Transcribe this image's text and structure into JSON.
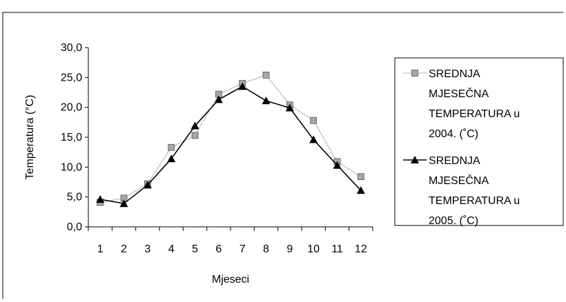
{
  "chart_data": {
    "type": "line",
    "title": "",
    "xlabel": "Mjeseci",
    "ylabel": "Temperatura (°C)",
    "categories": [
      "1",
      "2",
      "3",
      "4",
      "5",
      "6",
      "7",
      "8",
      "9",
      "10",
      "11",
      "12"
    ],
    "ylim": [
      0,
      30
    ],
    "yticks": [
      "0,0",
      "5,0",
      "10,0",
      "15,0",
      "20,0",
      "25,0",
      "30,0"
    ],
    "grid": false,
    "legend_position": "right",
    "series": [
      {
        "name": "SREDNJA MJESEČNA TEMPERATURA u 2004. (˚C)",
        "legend_lines": [
          "SREDNJA",
          "MJESEČNA",
          "TEMPERATURA u",
          "2004. (˚C)"
        ],
        "values": [
          4.1,
          4.8,
          7.2,
          13.3,
          15.3,
          22.2,
          24.0,
          25.4,
          20.4,
          17.8,
          10.9,
          8.4
        ],
        "line_color": "#c0c0c0",
        "marker": "square",
        "marker_color": "#a6a6a6"
      },
      {
        "name": "SREDNJA MJESEČNA TEMPERATURA u 2005. (˚C)",
        "legend_lines": [
          "SREDNJA",
          "MJESEČNA",
          "TEMPERATURA u",
          "2005. (˚C)"
        ],
        "values": [
          4.6,
          3.9,
          7.0,
          11.4,
          16.9,
          21.3,
          23.5,
          21.1,
          19.9,
          14.6,
          10.3,
          6.1
        ],
        "line_color": "#000000",
        "marker": "triangle",
        "marker_color": "#000000"
      }
    ]
  }
}
